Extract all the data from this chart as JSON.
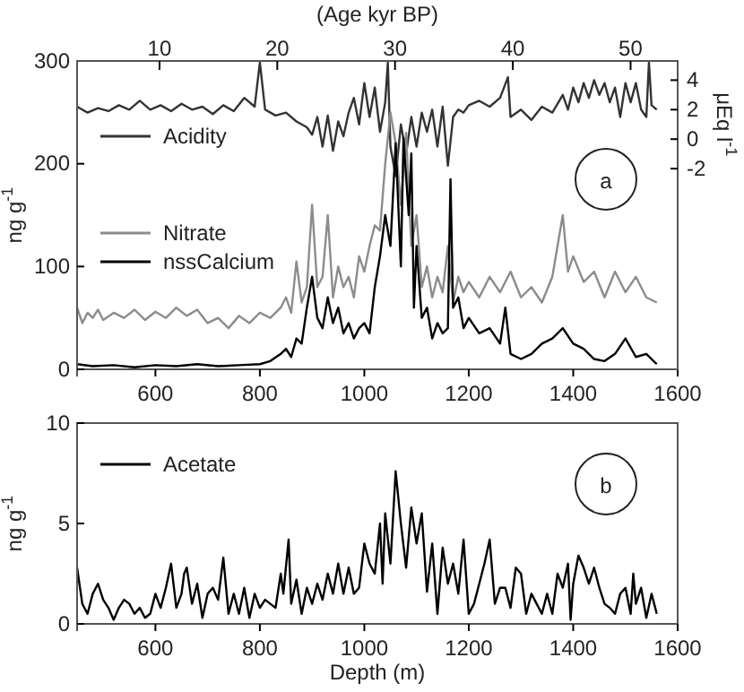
{
  "chart_data": [
    {
      "type": "line",
      "xlabel": null,
      "ylabel": "ng g$^{-1}$",
      "y2label": "μEq l$^{-1}$",
      "x2label": "(Age kyr BP)",
      "xlim": [
        450,
        1600
      ],
      "xticks": [
        600,
        800,
        1000,
        1200,
        1400,
        1600
      ],
      "x2lim": [
        3,
        54
      ],
      "x2ticks": [
        10,
        20,
        30,
        40,
        50
      ],
      "ylim": [
        0,
        300
      ],
      "yticks": [
        0,
        100,
        200,
        300
      ],
      "y2lim": [
        -15.6,
        5.3
      ],
      "y2ticks": [
        -2,
        0,
        2,
        4
      ],
      "legend": "top left",
      "annotations": [
        "a"
      ],
      "series": [
        {
          "name": "Acidity",
          "color": "#333333",
          "axis": "y2",
          "x": [
            450,
            470,
            490,
            510,
            530,
            550,
            570,
            590,
            610,
            630,
            650,
            670,
            690,
            710,
            730,
            750,
            770,
            790,
            800,
            810,
            830,
            850,
            870,
            890,
            900,
            910,
            920,
            930,
            940,
            950,
            960,
            970,
            980,
            990,
            1000,
            1010,
            1020,
            1030,
            1040,
            1045,
            1050,
            1060,
            1070,
            1080,
            1090,
            1100,
            1110,
            1120,
            1130,
            1140,
            1150,
            1160,
            1170,
            1180,
            1190,
            1200,
            1220,
            1240,
            1260,
            1275,
            1280,
            1300,
            1320,
            1340,
            1360,
            1380,
            1390,
            1400,
            1410,
            1420,
            1430,
            1440,
            1450,
            1460,
            1470,
            1480,
            1490,
            1500,
            1510,
            1520,
            1530,
            1540,
            1545,
            1550,
            1560
          ],
          "values": [
            2.2,
            1.8,
            2.1,
            1.9,
            2.3,
            2.0,
            2.6,
            2.0,
            2.3,
            1.9,
            2.4,
            2.0,
            2.2,
            1.7,
            2.3,
            1.9,
            2.8,
            2.2,
            5.2,
            2.0,
            1.6,
            1.8,
            1.2,
            0.8,
            0.3,
            1.5,
            -0.5,
            1.6,
            -0.8,
            1.2,
            0.2,
            1.8,
            2.8,
            1.0,
            3.8,
            1.5,
            3.5,
            0.5,
            2.5,
            5.2,
            -0.5,
            -2.5,
            1.0,
            -1.0,
            1.5,
            -0.5,
            1.8,
            0.5,
            2.0,
            -0.5,
            2.2,
            -1.8,
            1.5,
            2.0,
            1.8,
            2.3,
            2.6,
            2.2,
            2.8,
            4.2,
            1.5,
            2.0,
            1.3,
            2.2,
            1.8,
            3.0,
            2.0,
            3.5,
            2.5,
            3.8,
            2.8,
            4.0,
            3.0,
            3.8,
            2.5,
            3.5,
            1.5,
            3.8,
            2.5,
            3.8,
            2.0,
            1.5,
            5.2,
            2.3,
            2.0
          ]
        },
        {
          "name": "Nitrate",
          "color": "#8c8c8c",
          "x": [
            450,
            460,
            470,
            480,
            490,
            500,
            520,
            540,
            560,
            580,
            600,
            620,
            640,
            660,
            680,
            700,
            720,
            740,
            760,
            780,
            800,
            820,
            840,
            850,
            860,
            870,
            880,
            890,
            900,
            910,
            920,
            930,
            940,
            950,
            960,
            970,
            980,
            990,
            1000,
            1010,
            1020,
            1030,
            1040,
            1050,
            1060,
            1070,
            1080,
            1090,
            1100,
            1110,
            1120,
            1130,
            1140,
            1150,
            1160,
            1170,
            1180,
            1190,
            1200,
            1220,
            1240,
            1260,
            1280,
            1300,
            1320,
            1340,
            1360,
            1380,
            1390,
            1400,
            1420,
            1440,
            1460,
            1480,
            1500,
            1520,
            1540,
            1560
          ],
          "values": [
            60,
            45,
            55,
            50,
            58,
            48,
            55,
            50,
            58,
            48,
            56,
            50,
            60,
            52,
            58,
            45,
            50,
            40,
            52,
            45,
            55,
            50,
            60,
            70,
            55,
            105,
            65,
            80,
            160,
            80,
            90,
            150,
            70,
            100,
            80,
            90,
            70,
            110,
            95,
            120,
            140,
            135,
            200,
            250,
            220,
            160,
            230,
            120,
            150,
            80,
            100,
            70,
            90,
            75,
            120,
            65,
            90,
            75,
            85,
            70,
            90,
            75,
            95,
            70,
            80,
            65,
            90,
            150,
            95,
            110,
            85,
            95,
            70,
            95,
            75,
            90,
            70,
            65
          ]
        },
        {
          "name": "nssCalcium",
          "color": "#000000",
          "x": [
            450,
            480,
            520,
            560,
            600,
            640,
            680,
            720,
            760,
            800,
            820,
            840,
            850,
            860,
            870,
            880,
            890,
            900,
            910,
            920,
            930,
            940,
            950,
            960,
            970,
            980,
            990,
            1000,
            1010,
            1020,
            1030,
            1040,
            1050,
            1060,
            1070,
            1075,
            1085,
            1090,
            1095,
            1100,
            1110,
            1120,
            1130,
            1140,
            1150,
            1160,
            1165,
            1170,
            1180,
            1190,
            1200,
            1220,
            1240,
            1260,
            1270,
            1280,
            1300,
            1320,
            1340,
            1360,
            1380,
            1400,
            1420,
            1440,
            1460,
            1480,
            1500,
            1520,
            1540,
            1560
          ],
          "values": [
            5,
            3,
            4,
            2,
            4,
            3,
            5,
            3,
            4,
            5,
            8,
            15,
            20,
            12,
            30,
            25,
            60,
            90,
            50,
            40,
            70,
            45,
            60,
            35,
            45,
            30,
            40,
            45,
            35,
            80,
            110,
            150,
            120,
            220,
            100,
            225,
            150,
            210,
            60,
            120,
            50,
            60,
            30,
            45,
            35,
            40,
            185,
            60,
            70,
            40,
            50,
            35,
            40,
            25,
            60,
            15,
            10,
            15,
            25,
            30,
            40,
            25,
            20,
            10,
            8,
            15,
            30,
            12,
            15,
            5
          ]
        }
      ]
    },
    {
      "type": "line",
      "xlabel": "Depth (m)",
      "ylabel": "ng g$^{-1}$",
      "xlim": [
        450,
        1600
      ],
      "xticks": [
        600,
        800,
        1000,
        1200,
        1400,
        1600
      ],
      "ylim": [
        0,
        10
      ],
      "yticks": [
        0,
        5,
        10
      ],
      "legend": "top left",
      "annotations": [
        "b"
      ],
      "series": [
        {
          "name": "Acetate",
          "color": "#000000",
          "x": [
            450,
            460,
            470,
            480,
            490,
            500,
            510,
            520,
            530,
            540,
            550,
            560,
            570,
            580,
            590,
            600,
            610,
            620,
            630,
            640,
            650,
            655,
            660,
            670,
            680,
            690,
            700,
            710,
            720,
            730,
            740,
            750,
            760,
            770,
            780,
            790,
            800,
            810,
            820,
            830,
            840,
            845,
            855,
            860,
            870,
            880,
            890,
            900,
            910,
            920,
            930,
            940,
            950,
            960,
            970,
            980,
            990,
            1000,
            1010,
            1020,
            1030,
            1035,
            1040,
            1050,
            1060,
            1070,
            1080,
            1090,
            1100,
            1110,
            1120,
            1130,
            1140,
            1150,
            1160,
            1170,
            1180,
            1190,
            1200,
            1210,
            1220,
            1230,
            1240,
            1250,
            1260,
            1270,
            1280,
            1290,
            1300,
            1310,
            1320,
            1330,
            1340,
            1350,
            1360,
            1370,
            1380,
            1390,
            1395,
            1400,
            1410,
            1420,
            1430,
            1440,
            1450,
            1460,
            1470,
            1480,
            1490,
            1500,
            1510,
            1515,
            1520,
            1530,
            1540,
            1550,
            1560
          ],
          "values": [
            2.8,
            1.0,
            0.5,
            1.5,
            2.0,
            1.2,
            0.8,
            0.2,
            0.8,
            1.2,
            1.0,
            0.5,
            0.8,
            0.3,
            0.5,
            1.5,
            0.8,
            1.8,
            3.0,
            0.8,
            1.5,
            2.5,
            2.8,
            1.0,
            2.0,
            0.3,
            1.5,
            1.8,
            1.2,
            3.3,
            0.5,
            1.5,
            0.5,
            1.8,
            0.3,
            1.5,
            0.8,
            1.2,
            1.0,
            0.8,
            2.5,
            1.5,
            4.2,
            1.0,
            2.2,
            0.5,
            1.8,
            1.0,
            2.0,
            1.2,
            2.5,
            1.5,
            3.0,
            1.5,
            2.8,
            1.5,
            1.8,
            4.0,
            3.0,
            2.5,
            5.0,
            2.0,
            5.5,
            3.0,
            7.6,
            5.0,
            2.8,
            5.8,
            4.0,
            5.5,
            1.6,
            4.0,
            0.5,
            3.8,
            2.0,
            3.0,
            1.5,
            4.2,
            0.5,
            1.0,
            2.0,
            3.0,
            4.2,
            1.0,
            1.8,
            1.8,
            0.8,
            2.8,
            2.5,
            0.5,
            1.5,
            1.0,
            0.5,
            1.5,
            0.5,
            2.5,
            1.8,
            3.0,
            0.2,
            2.0,
            3.4,
            2.8,
            2.0,
            2.8,
            1.8,
            1.0,
            0.8,
            0.5,
            1.5,
            1.8,
            0.5,
            2.5,
            1.0,
            1.8,
            0.3,
            1.5,
            0.5
          ]
        }
      ]
    }
  ]
}
